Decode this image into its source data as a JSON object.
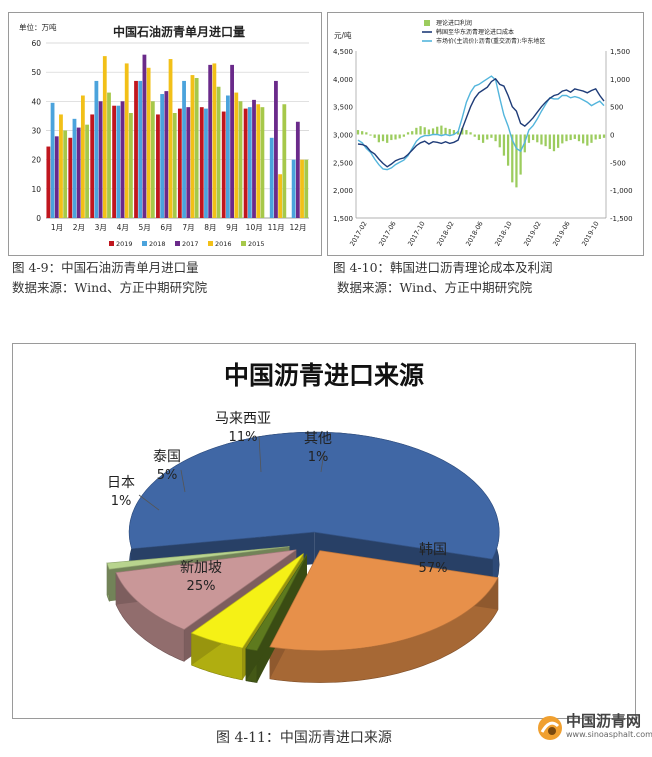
{
  "captions": {
    "fig9_title": "图 4-9：中国石油沥青单月进口量",
    "fig9_source": "数据来源：Wind、方正中期研究院",
    "fig10_title": "图 4-10：韩国进口沥青理论成本及利润",
    "fig10_source": "数据来源：Wind、方正中期研究院",
    "fig11_title": "图 4-11：中国沥青进口来源"
  },
  "watermark": {
    "title": "中国沥青网",
    "url": "www.sinoasphalt.com"
  },
  "chart_data": [
    {
      "id": "monthly-imports",
      "type": "bar",
      "title": "中国石油沥青单月进口量",
      "ylabel": "单位：万吨",
      "ylim": [
        0,
        60
      ],
      "yticks": [
        0,
        10,
        20,
        30,
        40,
        50,
        60
      ],
      "categories": [
        "1月",
        "2月",
        "3月",
        "4月",
        "5月",
        "6月",
        "7月",
        "8月",
        "9月",
        "10月",
        "11月",
        "12月"
      ],
      "series": [
        {
          "name": "2019",
          "color": "#c0161e",
          "values": [
            24.5,
            27.5,
            35.5,
            38.5,
            47,
            35.5,
            37.5,
            38,
            36.5,
            37.5,
            null,
            null
          ]
        },
        {
          "name": "2018",
          "color": "#4ba3dc",
          "values": [
            39.5,
            34,
            47,
            38.5,
            47,
            42.5,
            47,
            37.5,
            42,
            38,
            27.5,
            20
          ]
        },
        {
          "name": "2017",
          "color": "#6a2a8a",
          "values": [
            28,
            31,
            40,
            40,
            56,
            43.5,
            38,
            52.5,
            52.5,
            40.5,
            47,
            33
          ]
        },
        {
          "name": "2016",
          "color": "#f2c018",
          "values": [
            35.5,
            42,
            55.5,
            53,
            51.5,
            54.5,
            49,
            53,
            43,
            39,
            15,
            20
          ]
        },
        {
          "name": "2015",
          "color": "#a6c84a",
          "values": [
            30,
            32,
            43,
            36,
            40,
            36,
            48,
            45,
            40,
            38,
            39,
            20
          ]
        }
      ]
    },
    {
      "id": "korea-import-cost",
      "type": "line",
      "title": "韩国进口沥青理论成本及利润",
      "ylabel_left": "元/吨",
      "ylim_left": [
        1500,
        4500
      ],
      "yticks_left": [
        "1,500",
        "2,000",
        "2,500",
        "3,000",
        "3,500",
        "4,000",
        "4,500"
      ],
      "ylim_right": [
        -1500,
        1500
      ],
      "yticks_right": [
        "-1,500",
        "-1,000",
        "-500",
        "0",
        "500",
        "1,000",
        "1,500"
      ],
      "x_ticks": [
        "2017-02",
        "2017-06",
        "2017-10",
        "2018-02",
        "2018-06",
        "2018-10",
        "2019-02",
        "2019-06",
        "2019-10"
      ],
      "series": [
        {
          "name": "理论进口利润",
          "kind": "bar",
          "axis": "right",
          "color": "#9ccc5e",
          "values": [
            80,
            60,
            40,
            -20,
            -60,
            -140,
            -120,
            -150,
            -100,
            -90,
            -70,
            -40,
            40,
            60,
            120,
            150,
            130,
            90,
            110,
            140,
            160,
            120,
            100,
            80,
            60,
            120,
            80,
            40,
            -40,
            -100,
            -150,
            -90,
            -60,
            -120,
            -230,
            -380,
            -560,
            -860,
            -950,
            -720,
            -320,
            -150,
            -100,
            -140,
            -180,
            -210,
            -260,
            -300,
            -240,
            -160,
            -120,
            -100,
            -80,
            -120,
            -160,
            -200,
            -150,
            -90,
            -80,
            -60
          ]
        },
        {
          "name": "韩国至华东沥青理论进口成本",
          "kind": "line",
          "axis": "left",
          "color": "#1f3c78",
          "values": [
            2830,
            2820,
            2790,
            2700,
            2650,
            2560,
            2480,
            2420,
            2470,
            2530,
            2560,
            2580,
            2640,
            2720,
            2800,
            2850,
            2880,
            2830,
            2870,
            2860,
            2840,
            2870,
            2840,
            2860,
            2900,
            3100,
            3300,
            3500,
            3650,
            3750,
            3800,
            3850,
            3950,
            4000,
            3900,
            3870,
            3700,
            3500,
            3420,
            3200,
            3150,
            3220,
            3300,
            3400,
            3500,
            3580,
            3650,
            3700,
            3720,
            3780,
            3800,
            3760,
            3820,
            3800,
            3780,
            3750,
            3790,
            3820,
            3700,
            3600
          ]
        },
        {
          "name": "市场价(主流价):沥青(重交沥青):华东地区",
          "kind": "line",
          "axis": "left",
          "color": "#53b5dc",
          "values": [
            2900,
            2850,
            2750,
            2680,
            2560,
            2460,
            2380,
            2370,
            2400,
            2460,
            2500,
            2540,
            2620,
            2750,
            2880,
            2950,
            2980,
            2980,
            3000,
            3000,
            2980,
            3000,
            2980,
            3000,
            3050,
            3300,
            3580,
            3760,
            3870,
            3900,
            3950,
            4000,
            4050,
            3980,
            3650,
            3350,
            3150,
            2900,
            2750,
            2700,
            2860,
            3080,
            3160,
            3280,
            3420,
            3540,
            3660,
            3640,
            3640,
            3700,
            3700,
            3660,
            3680,
            3660,
            3620,
            3580,
            3520,
            3560,
            3600,
            3520
          ]
        }
      ]
    },
    {
      "id": "import-sources",
      "type": "pie",
      "title": "中国沥青进口来源",
      "slices": [
        {
          "label": "韩国",
          "percent": "57%",
          "value": 57,
          "color": "#4067a5"
        },
        {
          "label": "新加坡",
          "percent": "25%",
          "value": 25,
          "color": "#e7904a"
        },
        {
          "label": "日本",
          "percent": "1%",
          "value": 1,
          "color": "#5e7a1e"
        },
        {
          "label": "泰国",
          "percent": "5%",
          "value": 5,
          "color": "#f5f116"
        },
        {
          "label": "马来西亚",
          "percent": "11%",
          "value": 11,
          "color": "#c99798"
        },
        {
          "label": "其他",
          "percent": "1%",
          "value": 1,
          "color": "#b8d48e"
        }
      ]
    }
  ]
}
